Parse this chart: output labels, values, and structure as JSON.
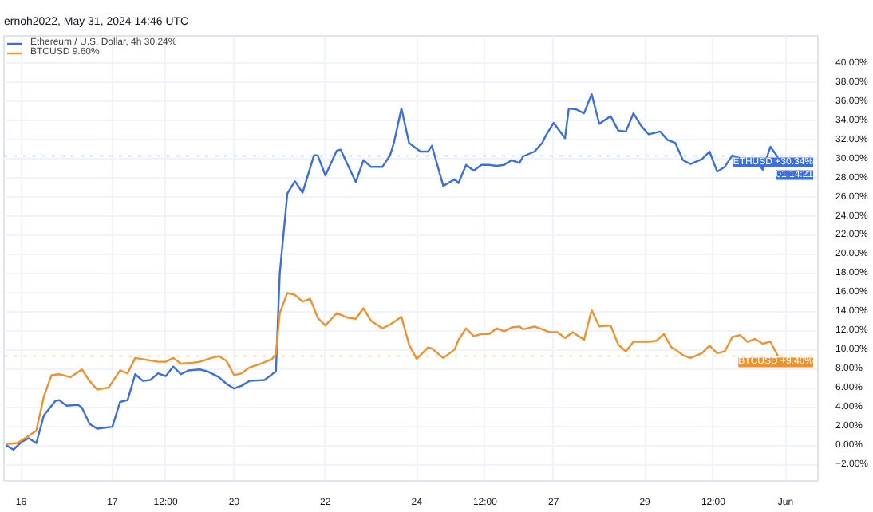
{
  "chart_data": {
    "type": "line",
    "title": "ernoh2022, May 31, 2024 14:46 UTC",
    "categories": [
      null,
      null,
      null,
      null,
      "16",
      null,
      null,
      null,
      null,
      null,
      null,
      null,
      null,
      null,
      null,
      null,
      null,
      null,
      null,
      null,
      null,
      null,
      null,
      null,
      null,
      null,
      null,
      null,
      "17",
      null,
      null,
      null,
      null,
      null,
      null,
      null,
      null,
      null,
      null,
      null,
      null,
      null,
      "12:00",
      null,
      null,
      null,
      null,
      null,
      null,
      null,
      null,
      null,
      null,
      null,
      null,
      null,
      null,
      null,
      null,
      null,
      "20",
      null,
      null,
      null,
      null,
      null,
      null,
      null,
      null,
      null,
      null,
      null,
      null,
      null,
      null,
      null,
      null,
      null,
      null,
      null,
      null,
      null,
      null,
      null,
      "22",
      null,
      null,
      null,
      null,
      null,
      null,
      null,
      null,
      null,
      null,
      null,
      null,
      null,
      null,
      null,
      null,
      null,
      null,
      null,
      null,
      null,
      null,
      null,
      "24",
      null,
      null,
      null,
      null,
      null,
      null,
      null,
      null,
      null,
      null,
      null,
      null,
      null,
      null,
      null,
      null,
      null,
      "12:00",
      null,
      null,
      null,
      null,
      null,
      null,
      null,
      null,
      null,
      null,
      null,
      null,
      null,
      null,
      null,
      null,
      null,
      "27",
      null,
      null,
      null,
      null,
      null,
      null,
      null,
      null,
      null,
      null,
      null,
      null,
      null,
      null,
      null,
      null,
      null,
      null,
      null,
      null,
      null,
      null,
      null,
      "29",
      null,
      null,
      null,
      null,
      null,
      null,
      null,
      null,
      null,
      null,
      null,
      null,
      null,
      null,
      null,
      null,
      null,
      "12:00",
      null,
      null,
      null,
      null,
      null,
      null,
      null,
      null,
      null,
      null,
      null,
      null,
      null,
      null,
      null,
      null,
      null,
      null,
      "Jun",
      null,
      null,
      null,
      null,
      null,
      null,
      null,
      null
    ],
    "ylim": [
      -3.66,
      42.9
    ],
    "yticks": [
      {
        "value": -2,
        "label": "−2.00%"
      },
      {
        "value": 0,
        "label": "0.00%"
      },
      {
        "value": 2,
        "label": "2.00%"
      },
      {
        "value": 4,
        "label": "4.00%"
      },
      {
        "value": 6,
        "label": "6.00%"
      },
      {
        "value": 8,
        "label": "8.00%"
      },
      {
        "value": 10,
        "label": "10.00%"
      },
      {
        "value": 12,
        "label": "12.00%"
      },
      {
        "value": 14,
        "label": "14.00%"
      },
      {
        "value": 16,
        "label": "16.00%"
      },
      {
        "value": 18,
        "label": "18.00%"
      },
      {
        "value": 20,
        "label": "20.00%"
      },
      {
        "value": 22,
        "label": "22.00%"
      },
      {
        "value": 24,
        "label": "24.00%"
      },
      {
        "value": 26,
        "label": "26.00%"
      },
      {
        "value": 28,
        "label": "28.00%"
      },
      {
        "value": 30,
        "label": "30.00%"
      },
      {
        "value": 32,
        "label": "32.00%"
      },
      {
        "value": 34,
        "label": "34.00%"
      },
      {
        "value": 36,
        "label": "36.00%"
      },
      {
        "value": 38,
        "label": "38.00%"
      },
      {
        "value": 40,
        "label": "40.00%"
      }
    ],
    "grid": true,
    "legend": "top left",
    "marker": "none",
    "line_style": "solid",
    "ref_lines": [
      {
        "axis": "y",
        "value": 30.34,
        "label": "ETHUSD +30.34%\n01:14:21",
        "color": "#3b6fe0",
        "line_style": "dotted"
      },
      {
        "axis": "y",
        "value": 9.4,
        "label": "BTCUSD +9.40%",
        "color": "#f0922b",
        "line_style": "dotted"
      }
    ],
    "series": [
      {
        "name": "Ethereum / U.S. Dollar, 4h 30.24%",
        "color": "#3b6fe0",
        "values": [
          0.1,
          null,
          -0.4,
          null,
          0.4,
          null,
          0.8,
          null,
          0.3,
          null,
          3.2,
          null,
          null,
          4.7,
          4.8,
          null,
          4.2,
          null,
          null,
          4.3,
          4.0,
          null,
          2.3,
          null,
          1.8,
          null,
          null,
          null,
          2.0,
          null,
          4.6,
          null,
          4.8,
          null,
          7.5,
          null,
          6.8,
          null,
          6.9,
          null,
          7.6,
          null,
          7.3,
          null,
          8.3,
          null,
          7.5,
          null,
          7.9,
          null,
          null,
          8.0,
          null,
          7.8,
          null,
          null,
          7.2,
          null,
          6.5,
          null,
          6.0,
          null,
          6.3,
          null,
          6.8,
          null,
          null,
          null,
          6.9,
          null,
          null,
          7.8,
          18.0,
          null,
          26.4,
          null,
          27.7,
          null,
          26.5,
          null,
          null,
          30.4,
          30.4,
          null,
          28.3,
          null,
          null,
          30.9,
          31.0,
          null,
          29.3,
          null,
          27.6,
          null,
          29.9,
          null,
          29.2,
          null,
          null,
          29.2,
          null,
          30.4,
          31.7,
          null,
          35.3,
          null,
          31.7,
          null,
          null,
          30.8,
          null,
          30.8,
          31.4,
          null,
          null,
          27.2,
          null,
          null,
          27.9,
          27.5,
          null,
          29.4,
          null,
          28.8,
          null,
          29.4,
          null,
          29.4,
          null,
          29.3,
          null,
          29.4,
          null,
          29.9,
          null,
          29.6,
          30.3,
          null,
          null,
          30.8,
          null,
          31.7,
          32.5,
          null,
          33.8,
          null,
          null,
          32.2,
          35.3,
          null,
          35.2,
          null,
          34.8,
          null,
          36.8,
          null,
          33.7,
          null,
          null,
          34.5,
          null,
          33.0,
          null,
          32.9,
          null,
          34.8,
          null,
          33.5,
          null,
          32.6,
          null,
          32.8,
          32.9,
          null,
          32.0,
          null,
          31.7,
          null,
          29.9,
          null,
          29.5,
          null,
          null,
          30.0,
          null,
          30.8,
          null,
          28.7,
          null,
          29.2,
          null,
          30.4,
          null,
          30.1,
          null,
          29.5,
          null,
          29.9,
          null,
          28.9,
          null,
          31.3,
          null,
          30.2,
          null,
          null,
          null,
          null,
          null,
          null,
          null,
          null,
          null,
          null
        ]
      },
      {
        "name": "BTCUSD 9.60%",
        "color": "#f0922b",
        "values": [
          0.2,
          null,
          null,
          0.3,
          null,
          0.8,
          null,
          null,
          1.6,
          null,
          5.2,
          null,
          7.4,
          null,
          7.5,
          null,
          null,
          7.2,
          null,
          null,
          8.0,
          null,
          6.8,
          null,
          5.9,
          null,
          null,
          6.1,
          6.7,
          null,
          7.9,
          null,
          7.6,
          null,
          9.2,
          null,
          null,
          9.0,
          null,
          null,
          8.8,
          null,
          8.8,
          null,
          9.2,
          null,
          8.6,
          null,
          null,
          8.7,
          null,
          8.8,
          null,
          null,
          9.2,
          null,
          9.4,
          null,
          8.9,
          null,
          7.4,
          null,
          7.6,
          null,
          8.2,
          null,
          null,
          8.6,
          null,
          null,
          9.1,
          9.6,
          13.9,
          null,
          16.0,
          null,
          15.8,
          null,
          15.1,
          null,
          15.4,
          null,
          13.4,
          null,
          12.6,
          null,
          null,
          13.9,
          null,
          null,
          13.4,
          null,
          13.3,
          null,
          14.4,
          null,
          13.1,
          null,
          null,
          12.3,
          null,
          12.7,
          null,
          null,
          13.5,
          null,
          10.6,
          null,
          9.1,
          null,
          null,
          10.3,
          10.2,
          null,
          null,
          9.2,
          null,
          null,
          10.1,
          11.1,
          null,
          12.3,
          null,
          11.5,
          null,
          11.7,
          null,
          11.7,
          null,
          12.3,
          null,
          12.0,
          null,
          12.4,
          null,
          12.5,
          12.2,
          null,
          null,
          12.5,
          null,
          12.2,
          null,
          11.9,
          null,
          11.9,
          null,
          11.3,
          null,
          11.9,
          null,
          null,
          11.1,
          null,
          14.2,
          null,
          12.5,
          null,
          null,
          12.6,
          null,
          10.6,
          null,
          9.9,
          null,
          10.9,
          null,
          10.9,
          null,
          10.9,
          null,
          11.0,
          null,
          11.7,
          null,
          10.3,
          10.1,
          null,
          9.5,
          null,
          9.2,
          null,
          null,
          9.7,
          null,
          10.5,
          null,
          9.7,
          null,
          9.9,
          null,
          11.4,
          null,
          11.6,
          null,
          10.9,
          null,
          11.2,
          null,
          10.7,
          null,
          10.9,
          null,
          9.4,
          null,
          null,
          null,
          null,
          null,
          null,
          null,
          null,
          null,
          null
        ]
      }
    ]
  }
}
